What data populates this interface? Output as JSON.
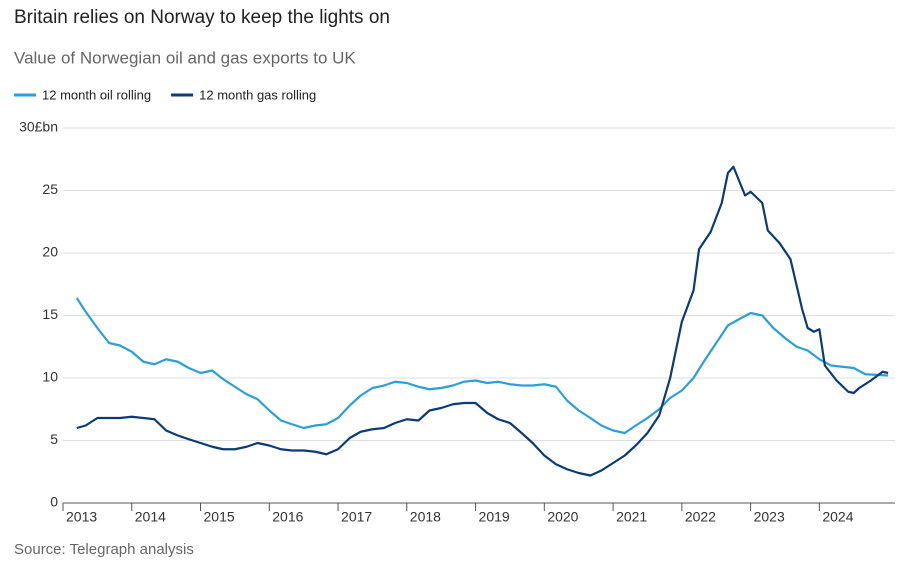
{
  "chart_data": {
    "type": "line",
    "title": "Britain relies on Norway to keep the lights on",
    "subtitle": "Value of Norwegian oil and gas exports to UK",
    "source": "Source: Telegraph analysis",
    "series": [
      {
        "name": "12 month oil rolling",
        "color": "#2b9fdc",
        "x": [
          2013.2,
          2013.33,
          2013.5,
          2013.67,
          2013.83,
          2014.0,
          2014.17,
          2014.33,
          2014.5,
          2014.67,
          2014.83,
          2015.0,
          2015.17,
          2015.33,
          2015.5,
          2015.67,
          2015.83,
          2016.0,
          2016.17,
          2016.33,
          2016.5,
          2016.67,
          2016.83,
          2017.0,
          2017.17,
          2017.33,
          2017.5,
          2017.67,
          2017.83,
          2018.0,
          2018.17,
          2018.33,
          2018.5,
          2018.67,
          2018.83,
          2019.0,
          2019.17,
          2019.33,
          2019.5,
          2019.67,
          2019.83,
          2020.0,
          2020.17,
          2020.33,
          2020.5,
          2020.67,
          2020.83,
          2021.0,
          2021.17,
          2021.33,
          2021.5,
          2021.67,
          2021.83,
          2022.0,
          2022.17,
          2022.33,
          2022.5,
          2022.67,
          2022.83,
          2023.0,
          2023.17,
          2023.33,
          2023.5,
          2023.67,
          2023.83,
          2024.0,
          2024.17,
          2024.33,
          2024.5,
          2024.67,
          2025.0
        ],
        "values": [
          16.4,
          15.3,
          14.0,
          12.8,
          12.6,
          12.1,
          11.3,
          11.1,
          11.5,
          11.3,
          10.8,
          10.4,
          10.6,
          9.9,
          9.3,
          8.7,
          8.3,
          7.4,
          6.6,
          6.3,
          6.0,
          6.2,
          6.3,
          6.8,
          7.8,
          8.6,
          9.2,
          9.4,
          9.7,
          9.6,
          9.3,
          9.1,
          9.2,
          9.4,
          9.7,
          9.8,
          9.6,
          9.7,
          9.5,
          9.4,
          9.4,
          9.5,
          9.3,
          8.2,
          7.4,
          6.8,
          6.2,
          5.8,
          5.6,
          6.2,
          6.8,
          7.5,
          8.4,
          9.0,
          10.0,
          11.4,
          12.8,
          14.2,
          14.7,
          15.2,
          15.0,
          14.0,
          13.2,
          12.5,
          12.2,
          11.5,
          11.0,
          10.9,
          10.8,
          10.3,
          10.2
        ]
      },
      {
        "name": "12 month gas rolling",
        "color": "#0b3a78",
        "x": [
          2013.2,
          2013.33,
          2013.5,
          2013.67,
          2013.83,
          2014.0,
          2014.17,
          2014.33,
          2014.5,
          2014.67,
          2014.83,
          2015.0,
          2015.17,
          2015.33,
          2015.5,
          2015.67,
          2015.83,
          2016.0,
          2016.17,
          2016.33,
          2016.5,
          2016.67,
          2016.83,
          2017.0,
          2017.17,
          2017.33,
          2017.5,
          2017.67,
          2017.83,
          2018.0,
          2018.17,
          2018.33,
          2018.5,
          2018.67,
          2018.83,
          2019.0,
          2019.17,
          2019.33,
          2019.5,
          2019.67,
          2019.83,
          2020.0,
          2020.17,
          2020.33,
          2020.5,
          2020.67,
          2020.83,
          2021.0,
          2021.17,
          2021.33,
          2021.5,
          2021.67,
          2021.83,
          2022.0,
          2022.17,
          2022.25,
          2022.42,
          2022.58,
          2022.67,
          2022.75,
          2022.92,
          2023.0,
          2023.17,
          2023.25,
          2023.42,
          2023.58,
          2023.75,
          2023.83,
          2023.92,
          2024.0,
          2024.08,
          2024.25,
          2024.42,
          2024.5,
          2024.58,
          2024.75,
          2024.92,
          2025.0
        ],
        "values": [
          6.0,
          6.2,
          6.8,
          6.8,
          6.8,
          6.9,
          6.8,
          6.7,
          5.8,
          5.4,
          5.1,
          4.8,
          4.5,
          4.3,
          4.3,
          4.5,
          4.8,
          4.6,
          4.3,
          4.2,
          4.2,
          4.1,
          3.9,
          4.3,
          5.2,
          5.7,
          5.9,
          6.0,
          6.4,
          6.7,
          6.6,
          7.4,
          7.6,
          7.9,
          8.0,
          8.0,
          7.2,
          6.7,
          6.4,
          5.6,
          4.8,
          3.8,
          3.1,
          2.7,
          2.4,
          2.2,
          2.6,
          3.2,
          3.8,
          4.6,
          5.6,
          7.0,
          10.0,
          14.5,
          17.0,
          20.3,
          21.7,
          24.0,
          26.4,
          26.9,
          24.6,
          24.9,
          24.0,
          21.8,
          20.8,
          19.5,
          15.5,
          14.0,
          13.7,
          13.9,
          11.0,
          9.8,
          8.9,
          8.8,
          9.2,
          9.8,
          10.5,
          10.4
        ]
      }
    ],
    "xlim": [
      2013,
      2025.1
    ],
    "xticks": [
      2013,
      2014,
      2015,
      2016,
      2017,
      2018,
      2019,
      2020,
      2021,
      2022,
      2023,
      2024
    ],
    "ylim": [
      0,
      30
    ],
    "yticks": [
      0,
      5,
      10,
      15,
      20,
      25,
      {
        "value": 30,
        "label": "30£bn"
      }
    ],
    "grid": true
  }
}
